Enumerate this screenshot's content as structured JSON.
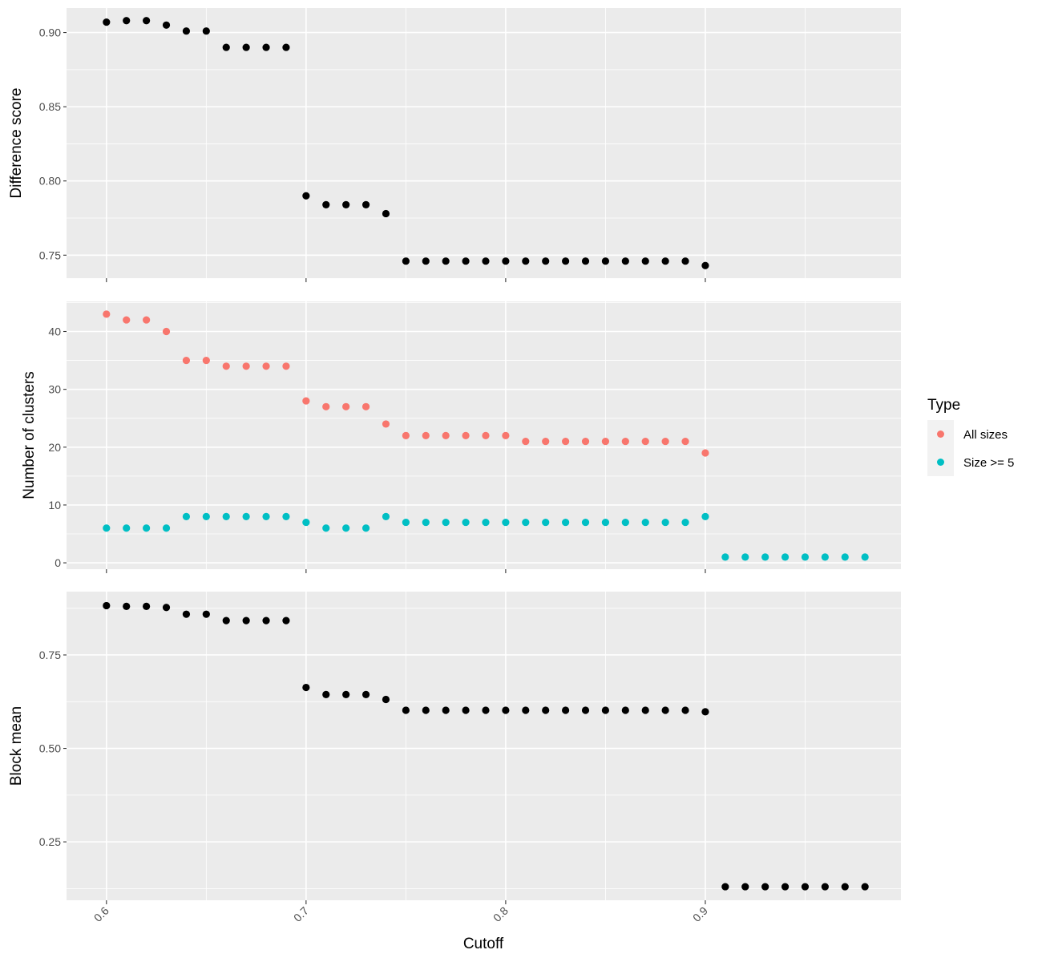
{
  "chart_data": {
    "type": "scatter",
    "xlabel": "Cutoff",
    "x_ticks": [
      "0.6",
      "0.7",
      "0.8",
      "0.9"
    ],
    "x_tick_values": [
      0.6,
      0.7,
      0.8,
      0.9
    ],
    "xlim": [
      0.58,
      0.998
    ],
    "legend": {
      "title": "Type",
      "position": "right",
      "entries": [
        {
          "name": "All sizes",
          "color": "#F8766D"
        },
        {
          "name": "Size >= 5",
          "color": "#00BFC4"
        }
      ]
    },
    "panels": [
      {
        "ylabel": "Difference score",
        "ylim": [
          0.7345,
          0.9165
        ],
        "y_ticks": [
          "0.75",
          "0.80",
          "0.85",
          "0.90"
        ],
        "y_tick_values": [
          0.75,
          0.8,
          0.85,
          0.9
        ],
        "series": [
          {
            "color": "#000000",
            "x": [
              0.6,
              0.61,
              0.62,
              0.63,
              0.64,
              0.65,
              0.66,
              0.67,
              0.68,
              0.69,
              0.7,
              0.71,
              0.72,
              0.73,
              0.74,
              0.75,
              0.76,
              0.77,
              0.78,
              0.79,
              0.8,
              0.81,
              0.82,
              0.83,
              0.84,
              0.85,
              0.86,
              0.87,
              0.88,
              0.89,
              0.9
            ],
            "y": [
              0.907,
              0.908,
              0.908,
              0.905,
              0.901,
              0.901,
              0.89,
              0.89,
              0.89,
              0.89,
              0.79,
              0.784,
              0.784,
              0.784,
              0.778,
              0.746,
              0.746,
              0.746,
              0.746,
              0.746,
              0.746,
              0.746,
              0.746,
              0.746,
              0.746,
              0.746,
              0.746,
              0.746,
              0.746,
              0.746,
              0.743
            ]
          }
        ]
      },
      {
        "ylabel": "Number of clusters",
        "ylim": [
          -1.1,
          45.2
        ],
        "y_ticks": [
          "0",
          "10",
          "20",
          "30",
          "40"
        ],
        "y_tick_values": [
          0,
          10,
          20,
          30,
          40
        ],
        "series": [
          {
            "name": "All sizes",
            "color": "#F8766D",
            "x": [
              0.6,
              0.61,
              0.62,
              0.63,
              0.64,
              0.65,
              0.66,
              0.67,
              0.68,
              0.69,
              0.7,
              0.71,
              0.72,
              0.73,
              0.74,
              0.75,
              0.76,
              0.77,
              0.78,
              0.79,
              0.8,
              0.81,
              0.82,
              0.83,
              0.84,
              0.85,
              0.86,
              0.87,
              0.88,
              0.89,
              0.9
            ],
            "y": [
              43,
              42,
              42,
              40,
              35,
              35,
              34,
              34,
              34,
              34,
              28,
              27,
              27,
              27,
              24,
              22,
              22,
              22,
              22,
              22,
              22,
              21,
              21,
              21,
              21,
              21,
              21,
              21,
              21,
              21,
              19
            ]
          },
          {
            "name": "Size >= 5",
            "color": "#00BFC4",
            "x": [
              0.6,
              0.61,
              0.62,
              0.63,
              0.64,
              0.65,
              0.66,
              0.67,
              0.68,
              0.69,
              0.7,
              0.71,
              0.72,
              0.73,
              0.74,
              0.75,
              0.76,
              0.77,
              0.78,
              0.79,
              0.8,
              0.81,
              0.82,
              0.83,
              0.84,
              0.85,
              0.86,
              0.87,
              0.88,
              0.89,
              0.9,
              0.91,
              0.92,
              0.93,
              0.94,
              0.95,
              0.96,
              0.97,
              0.98
            ],
            "y": [
              6,
              6,
              6,
              6,
              8,
              8,
              8,
              8,
              8,
              8,
              7,
              6,
              6,
              6,
              8,
              7,
              7,
              7,
              7,
              7,
              7,
              7,
              7,
              7,
              7,
              7,
              7,
              7,
              7,
              7,
              8,
              1,
              1,
              1,
              1,
              1,
              1,
              1,
              1
            ]
          }
        ]
      },
      {
        "ylabel": "Block mean",
        "ylim": [
          0.0937,
          0.9194
        ],
        "y_ticks": [
          "0.25",
          "0.50",
          "0.75"
        ],
        "y_tick_values": [
          0.25,
          0.5,
          0.75
        ],
        "series": [
          {
            "color": "#000000",
            "x": [
              0.6,
              0.61,
              0.62,
              0.63,
              0.64,
              0.65,
              0.66,
              0.67,
              0.68,
              0.69,
              0.7,
              0.71,
              0.72,
              0.73,
              0.74,
              0.75,
              0.76,
              0.77,
              0.78,
              0.79,
              0.8,
              0.81,
              0.82,
              0.83,
              0.84,
              0.85,
              0.86,
              0.87,
              0.88,
              0.89,
              0.9,
              0.91,
              0.92,
              0.93,
              0.94,
              0.95,
              0.96,
              0.97,
              0.98
            ],
            "y": [
              0.882,
              0.88,
              0.88,
              0.877,
              0.859,
              0.859,
              0.842,
              0.842,
              0.842,
              0.842,
              0.663,
              0.644,
              0.644,
              0.644,
              0.631,
              0.602,
              0.602,
              0.602,
              0.602,
              0.602,
              0.602,
              0.602,
              0.602,
              0.602,
              0.602,
              0.602,
              0.602,
              0.602,
              0.602,
              0.602,
              0.598,
              0.13,
              0.13,
              0.13,
              0.13,
              0.13,
              0.13,
              0.13,
              0.13
            ]
          }
        ]
      }
    ]
  }
}
